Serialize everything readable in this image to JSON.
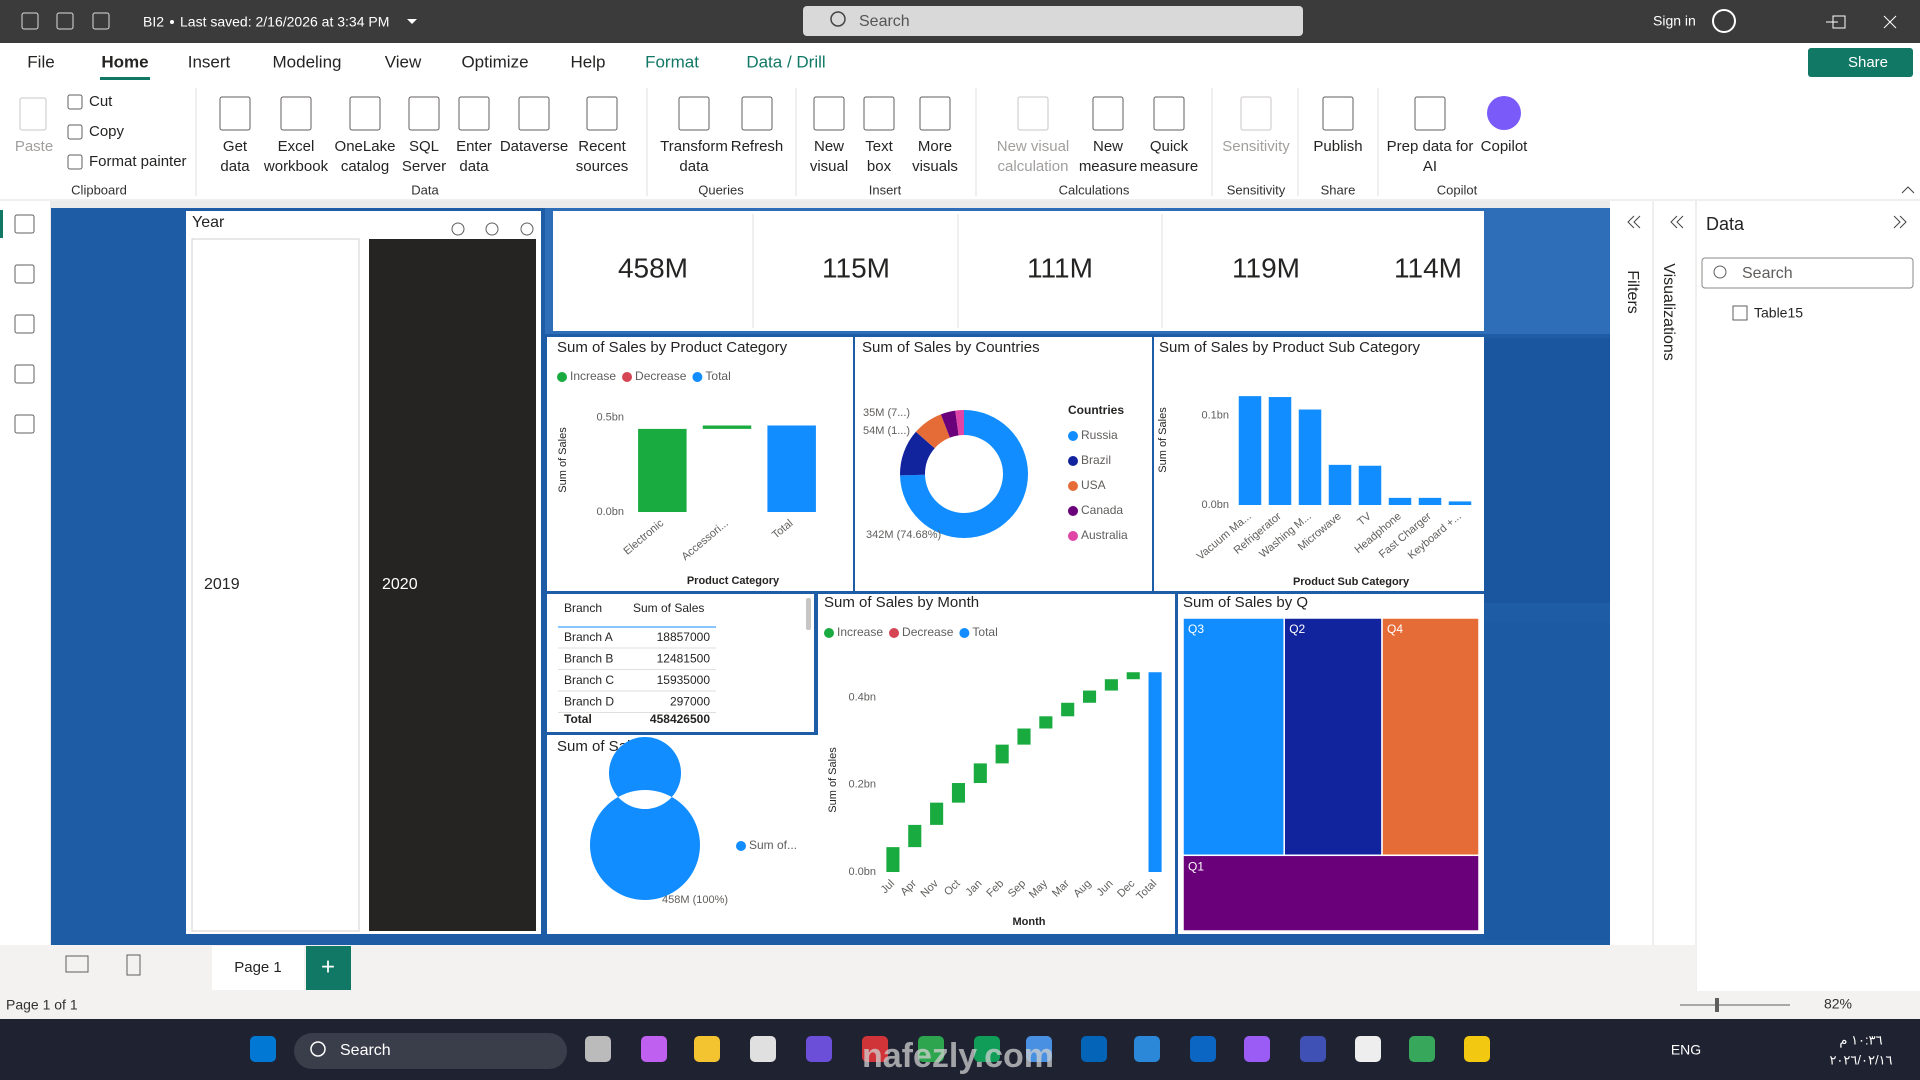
{
  "title_bar": {
    "file_name": "BI2",
    "saved": "Last saved: 2/16/2026 at 3:34 PM",
    "search": "Search",
    "sign_in": "Sign in"
  },
  "tabs": [
    "File",
    "Home",
    "Insert",
    "Modeling",
    "View",
    "Optimize",
    "Help",
    "Format",
    "Data / Drill"
  ],
  "share": "Share",
  "clipboard": {
    "name": "Clipboard",
    "paste": "Paste",
    "small": [
      "Cut",
      "Copy",
      "Format painter"
    ]
  },
  "ribbon": [
    {
      "name": "Data",
      "buttons": [
        [
          "Get",
          "data"
        ],
        [
          "Excel",
          "workbook"
        ],
        [
          "OneLake",
          "catalog"
        ],
        [
          "SQL",
          "Server"
        ],
        [
          "Enter",
          "data"
        ],
        [
          "Dataverse"
        ],
        [
          "Recent",
          "sources"
        ]
      ]
    },
    {
      "name": "Queries",
      "buttons": [
        [
          "Transform",
          "data"
        ],
        [
          "Refresh"
        ]
      ]
    },
    {
      "name": "Insert",
      "buttons": [
        [
          "New",
          "visual"
        ],
        [
          "Text",
          "box"
        ],
        [
          "More",
          "visuals"
        ]
      ]
    },
    {
      "name": "Calculations",
      "buttons": [
        [
          "New visual",
          "calculation"
        ],
        [
          "New",
          "measure"
        ],
        [
          "Quick",
          "measure"
        ]
      ]
    },
    {
      "name": "Sensitivity",
      "buttons": [
        [
          "Sensitivity"
        ]
      ]
    },
    {
      "name": "Share",
      "buttons": [
        [
          "Publish"
        ]
      ]
    },
    {
      "name": "Copilot",
      "buttons": [
        [
          "Prep data for",
          "AI"
        ],
        [
          "Copilot"
        ]
      ]
    }
  ],
  "report": {
    "slicer": {
      "title": "Year",
      "items": [
        "2019",
        "2020"
      ]
    },
    "cards": [
      "458M",
      "115M",
      "111M",
      "119M",
      "114M"
    ],
    "category_waterfall": {
      "type": "waterfall",
      "title": "Sum of Sales by Product Category",
      "legend": [
        "Increase",
        "Decrease",
        "Total"
      ],
      "colors": [
        "#1aab40",
        "#d64554",
        "#118dff"
      ],
      "categories": [
        "Electronic",
        "Accessori...",
        "Total"
      ],
      "values": [
        0.44,
        0.018,
        0.458
      ],
      "ylim": [
        0,
        0.54
      ],
      "yticks": [
        {
          "value": 0,
          "label": "0.0bn"
        },
        {
          "value": 0.5,
          "label": "0.5bn"
        }
      ],
      "x_label": "Product Category",
      "y_label": "Sum of Sales"
    },
    "countries_donut": {
      "type": "donut",
      "title": "Sum of Sales by Countries",
      "legend_title": "Countries",
      "categories": [
        "Russia",
        "Brazil",
        "USA",
        "Canada",
        "Australia"
      ],
      "values": [
        342,
        54,
        35,
        17,
        10
      ],
      "value_labels": [
        "342M (74.68%)",
        "54M (1...)",
        "35M (7...)",
        null,
        null
      ],
      "colors": [
        "#118dff",
        "#12239e",
        "#e66c37",
        "#6b007b",
        "#e044a7"
      ]
    },
    "subcategory_bar": {
      "type": "bar",
      "title": "Sum of Sales by Product Sub Category",
      "color": "#118dff",
      "categories": [
        "Vacuum Ma...",
        "Refrigerator",
        "Washing M...",
        "Microwave",
        "TV",
        "Headphone",
        "Fast Charger",
        "Keyboard +..."
      ],
      "values": [
        0.122,
        0.121,
        0.107,
        0.045,
        0.044,
        0.008,
        0.008,
        0.004
      ],
      "ylim": [
        0,
        0.13
      ],
      "yticks": [
        {
          "value": 0,
          "label": "0.0bn"
        },
        {
          "value": 0.1,
          "label": "0.1bn"
        }
      ],
      "x_label": "Product Sub Category",
      "y_label": "Sum of Sales"
    },
    "branch_table": {
      "columns": [
        "Branch",
        "Sum of Sales"
      ],
      "rows": [
        [
          "Branch A",
          "18857000"
        ],
        [
          "Branch B",
          "12481500"
        ],
        [
          "Branch C",
          "15935000"
        ],
        [
          "Branch D",
          "297000"
        ]
      ],
      "total": [
        "Total",
        "458426500"
      ]
    },
    "sales_donut": {
      "type": "donut",
      "title": "Sum of Sales",
      "categories": [
        "Sum of..."
      ],
      "values": [
        458
      ],
      "value_labels": [
        "458M (100%)"
      ],
      "colors": [
        "#118dff"
      ]
    },
    "month_waterfall": {
      "type": "waterfall",
      "title": "Sum of Sales by Month",
      "legend": [
        "Increase",
        "Decrease",
        "Total"
      ],
      "colors": [
        "#1aab40",
        "#d64554",
        "#118dff"
      ],
      "categories": [
        "Jul",
        "Apr",
        "Nov",
        "Oct",
        "Jan",
        "Feb",
        "Sep",
        "May",
        "Mar",
        "Aug",
        "Jun",
        "Dec",
        "Total"
      ],
      "values": [
        0.057,
        0.051,
        0.051,
        0.045,
        0.045,
        0.043,
        0.037,
        0.028,
        0.031,
        0.028,
        0.026,
        0.016,
        0.458
      ],
      "ylim": [
        0,
        0.47
      ],
      "yticks": [
        {
          "value": 0,
          "label": "0.0bn"
        },
        {
          "value": 0.2,
          "label": "0.2bn"
        },
        {
          "value": 0.4,
          "label": "0.4bn"
        }
      ],
      "x_label": "Month",
      "y_label": "Sum of Sales"
    },
    "quarter_treemap": {
      "type": "treemap",
      "title": "Sum of Sales by Q",
      "categories": [
        "Q3",
        "Q2",
        "Q4",
        "Q1"
      ],
      "values": [
        119,
        115,
        114,
        111
      ],
      "colors": [
        "#118dff",
        "#12239e",
        "#e66c37",
        "#6b007b"
      ]
    }
  },
  "pages": [
    "Page 1"
  ],
  "status": {
    "page": "Page 1 of 1",
    "zoom": "82%"
  },
  "panes": {
    "filters": "Filters",
    "visualizations": "Visualizations",
    "data": {
      "title": "Data",
      "search": "Search",
      "tables": [
        "Table15"
      ]
    }
  },
  "taskbar": {
    "search": "Search",
    "language": "ENG",
    "time": "١٠:٣٦ م",
    "date": "٢٠٢٦/٠٢/١٦",
    "watermark": "nafezly.com"
  }
}
